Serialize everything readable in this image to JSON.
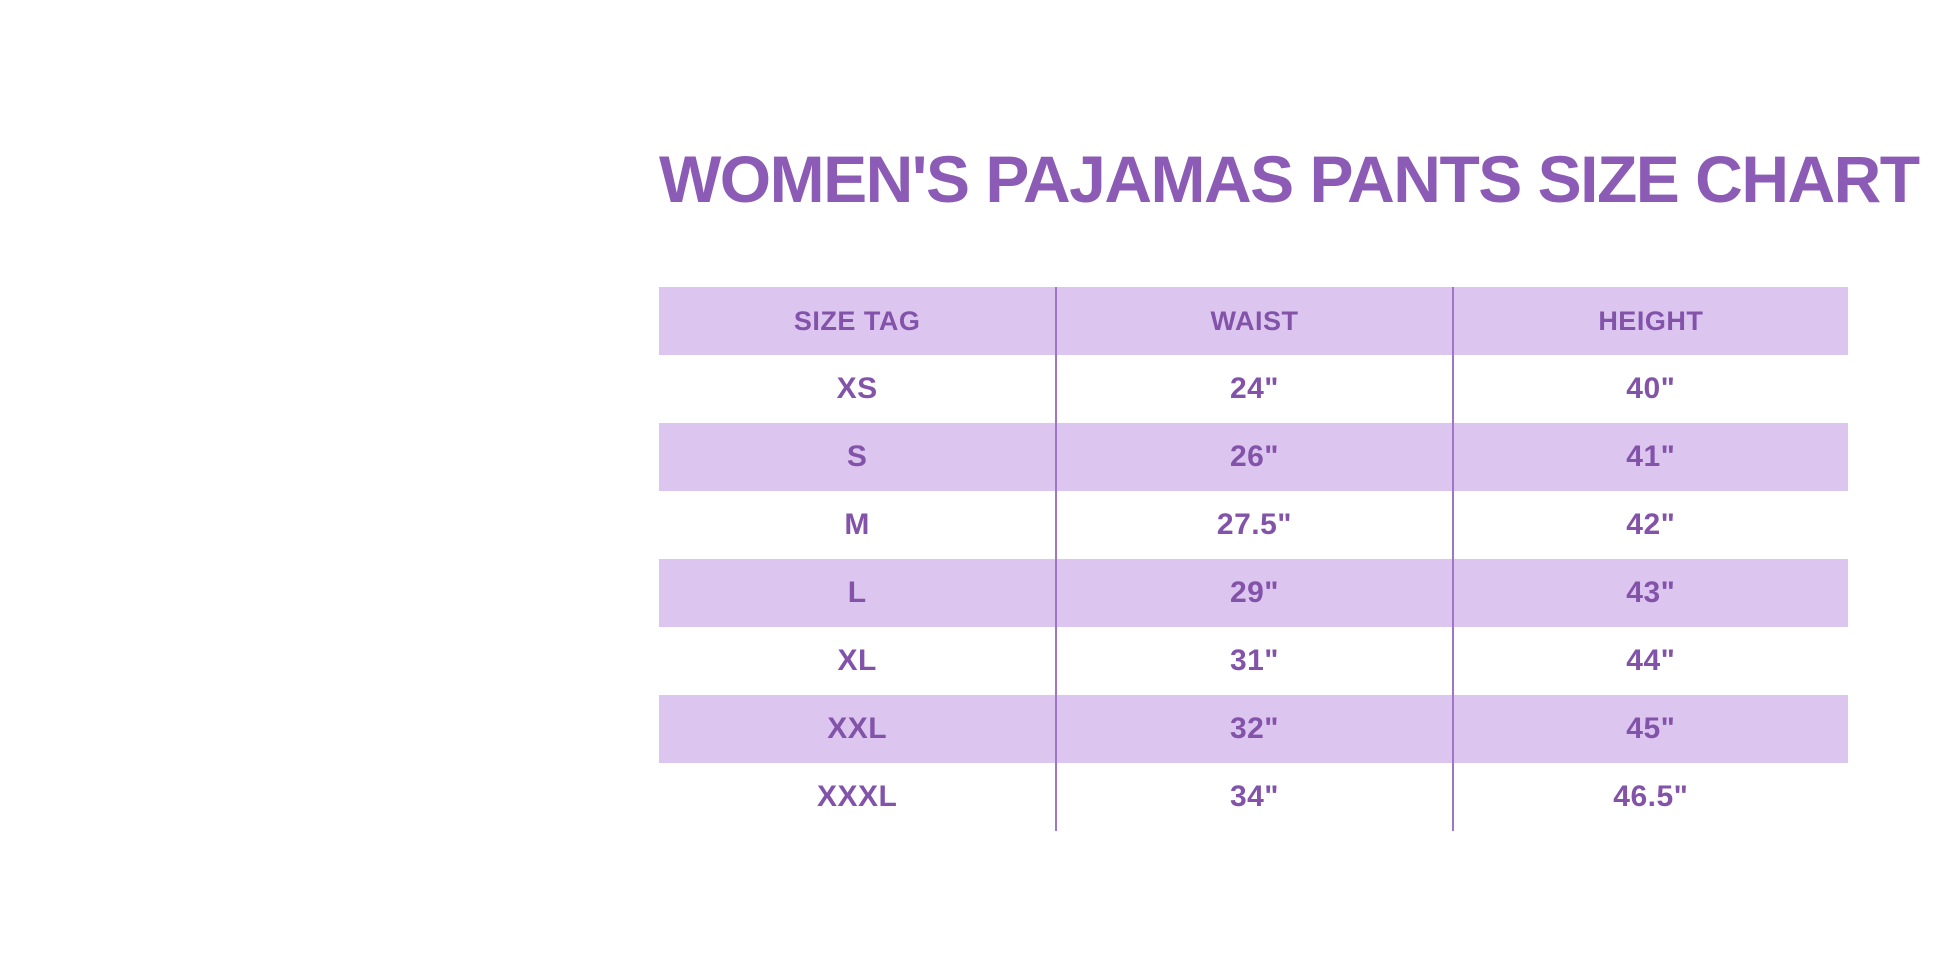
{
  "title": "WOMEN'S PAJAMAS PANTS SIZE CHART",
  "colors": {
    "background": "#ffffff",
    "title_text": "#8c5bb5",
    "table_text": "#8253a9",
    "row_band": "#dcc6f0",
    "column_divider": "#9d76c8"
  },
  "table": {
    "columns": [
      "SIZE TAG",
      "WAIST",
      "HEIGHT"
    ],
    "rows": [
      {
        "size_tag": "XS",
        "waist": "24\"",
        "height": "40\""
      },
      {
        "size_tag": "S",
        "waist": "26\"",
        "height": "41\""
      },
      {
        "size_tag": "M",
        "waist": "27.5\"",
        "height": "42\""
      },
      {
        "size_tag": "L",
        "waist": "29\"",
        "height": "43\""
      },
      {
        "size_tag": "XL",
        "waist": "31\"",
        "height": "44\""
      },
      {
        "size_tag": "XXL",
        "waist": "32\"",
        "height": "45\""
      },
      {
        "size_tag": "XXXL",
        "waist": "34\"",
        "height": "46.5\""
      }
    ]
  },
  "chart_data": {
    "type": "table",
    "title": "WOMEN'S PAJAMAS PANTS SIZE CHART",
    "columns": [
      "SIZE TAG",
      "WAIST",
      "HEIGHT"
    ],
    "rows": [
      [
        "XS",
        "24\"",
        "40\""
      ],
      [
        "S",
        "26\"",
        "41\""
      ],
      [
        "M",
        "27.5\"",
        "42\""
      ],
      [
        "L",
        "29\"",
        "43\""
      ],
      [
        "XL",
        "31\"",
        "44\""
      ],
      [
        "XXL",
        "32\"",
        "45\""
      ],
      [
        "XXXL",
        "34\"",
        "46.5\""
      ]
    ],
    "layout_hints": {
      "row_striping": "alternating lavender/white starting with lavender header",
      "column_alignment": "center",
      "vertical_dividers_between_columns": true
    }
  }
}
